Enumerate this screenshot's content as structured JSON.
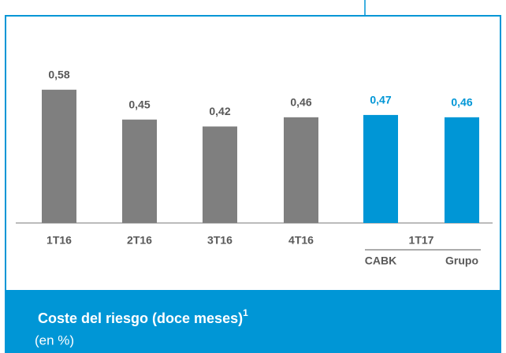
{
  "chart_data": {
    "type": "bar",
    "title": "Coste del riesgo (doce meses)",
    "title_note": "1",
    "subtitle": "(en %)",
    "categories": [
      "1T16",
      "2T16",
      "3T16",
      "4T16",
      "CABK",
      "Grupo"
    ],
    "group_label": "1T17",
    "values": [
      0.58,
      0.45,
      0.42,
      0.46,
      0.47,
      0.46
    ],
    "value_labels": [
      "0,58",
      "0,45",
      "0,42",
      "0,46",
      "0,47",
      "0,46"
    ],
    "colors": [
      "#7f7f7f",
      "#7f7f7f",
      "#7f7f7f",
      "#7f7f7f",
      "#0096d6",
      "#0096d6"
    ],
    "ylim": [
      0,
      0.6
    ]
  }
}
